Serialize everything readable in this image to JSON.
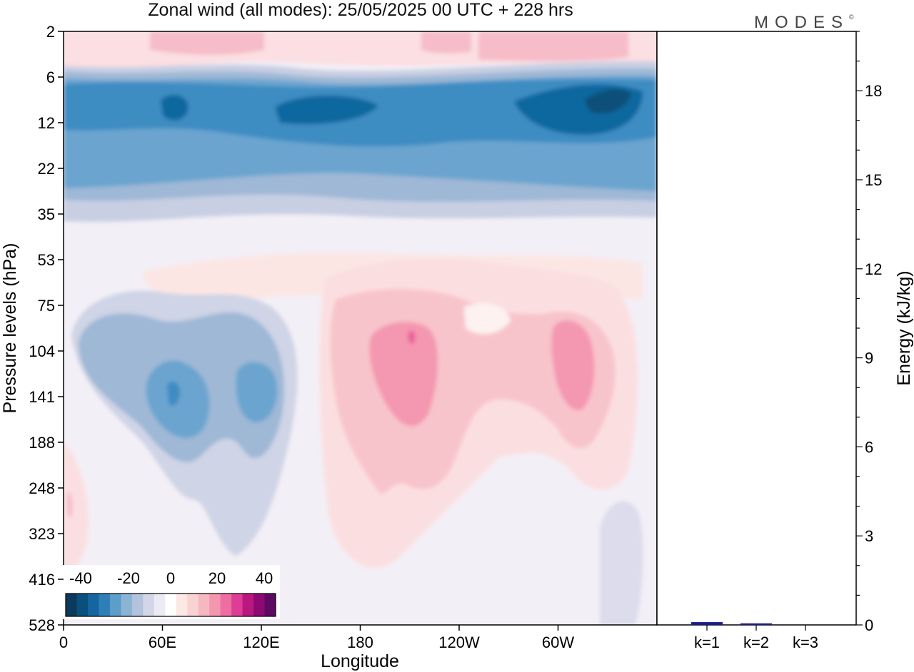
{
  "chart_data": [
    {
      "type": "heatmap",
      "title": "Zonal wind (all modes):  25/05/2025  00 UTC  + 228 hrs",
      "xlabel": "Longitude",
      "ylabel": "Pressure levels (hPa)",
      "x_ticks": [
        "0",
        "60E",
        "120E",
        "180",
        "120W",
        "60W"
      ],
      "y_ticks": [
        "2",
        "6",
        "12",
        "22",
        "35",
        "53",
        "75",
        "104",
        "141",
        "188",
        "248",
        "323",
        "416",
        "528"
      ],
      "colorbar": {
        "labels": [
          "-40",
          "-20",
          "0",
          "20",
          "40"
        ],
        "colors": [
          "#0c3a5c",
          "#0b4f7c",
          "#1565a0",
          "#2e7fb8",
          "#5c9dca",
          "#8ab3d4",
          "#b3c2dd",
          "#d2d6e8",
          "#ecebf4",
          "#ffffff",
          "#fce9e6",
          "#f9d3d2",
          "#f6b8c0",
          "#f497ae",
          "#ee6ea2",
          "#dd3d95",
          "#bb1780",
          "#8c0a72",
          "#5e0a64"
        ]
      },
      "features": [
        {
          "name": "stratospheric easterly jet",
          "value_ms": -30,
          "levels_hPa": [
            6,
            22
          ],
          "lon": [
            0,
            360
          ]
        },
        {
          "name": "easterly core 1",
          "value_ms": -38,
          "level_hPa": 10,
          "lon": 63
        },
        {
          "name": "easterly core 2",
          "value_ms": -38,
          "level_hPa": 10,
          "lon": 150
        },
        {
          "name": "easterly core 3",
          "value_ms": -42,
          "level_hPa": 9,
          "lon": 330
        },
        {
          "name": "upper westerlies",
          "value_ms": 12,
          "levels_hPa": [
            2,
            4
          ],
          "lon": [
            0,
            360
          ]
        },
        {
          "name": "tropospheric easterlies west",
          "value_ms": -28,
          "level_hPa": 141,
          "lon": 68
        },
        {
          "name": "tropospheric easterlies east",
          "value_ms": -25,
          "level_hPa": 141,
          "lon": 117
        },
        {
          "name": "tropospheric westerlies 1",
          "value_ms": 22,
          "level_hPa": 125,
          "lon": 203
        },
        {
          "name": "tropospheric westerlies 2",
          "value_ms": 20,
          "level_hPa": 125,
          "lon": 320
        }
      ]
    },
    {
      "type": "bar",
      "categories": [
        "k=1",
        "k=2",
        "k=3"
      ],
      "values": [
        0.07,
        0.02,
        0.0
      ],
      "bar_color": "#1a1a8c",
      "ylabel": "Energy (kJ/kg)",
      "ylim": [
        0,
        20
      ],
      "y_ticks": [
        0,
        3,
        6,
        9,
        12,
        15,
        18
      ]
    }
  ],
  "logo": "MODES"
}
